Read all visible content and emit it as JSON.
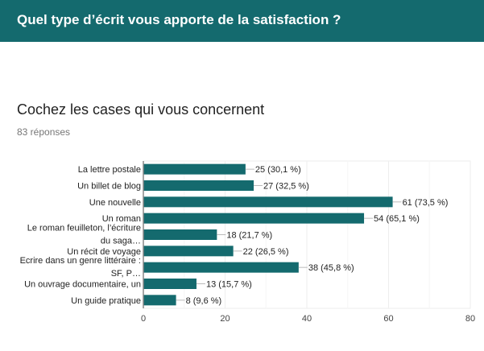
{
  "header": {
    "title": "Quel type d’écrit vous apporte de la satisfaction ?"
  },
  "question": {
    "title": "Cochez les cases qui vous concernent",
    "responses": "83 réponses"
  },
  "colors": {
    "header": "#146a6e",
    "bar": "#146a6e"
  },
  "chart_data": {
    "type": "bar",
    "orientation": "horizontal",
    "categories": [
      [
        "La lettre postale"
      ],
      [
        "Un billet de blog"
      ],
      [
        "Une nouvelle"
      ],
      [
        "Un roman"
      ],
      [
        "Le roman feuilleton, l’écriture",
        "du saga…"
      ],
      [
        "Un récit de voyage"
      ],
      [
        "Ecrire dans un genre littéraire :",
        "SF, P…"
      ],
      [
        "Un ouvrage documentaire, un"
      ],
      [
        "Un guide pratique"
      ]
    ],
    "values": [
      25,
      27,
      61,
      54,
      18,
      22,
      38,
      13,
      8
    ],
    "data_labels": [
      "25 (30,1 %)",
      "27 (32,5 %)",
      "61 (73,5 %)",
      "54 (65,1 %)",
      "18 (21,7 %)",
      "22 (26,5 %)",
      "38 (45,8 %)",
      "13 (15,7 %)",
      "8 (9,6 %)"
    ],
    "xlim": [
      0,
      80
    ],
    "xticks": [
      "0",
      "20",
      "40",
      "60",
      "80"
    ],
    "grid": true
  }
}
